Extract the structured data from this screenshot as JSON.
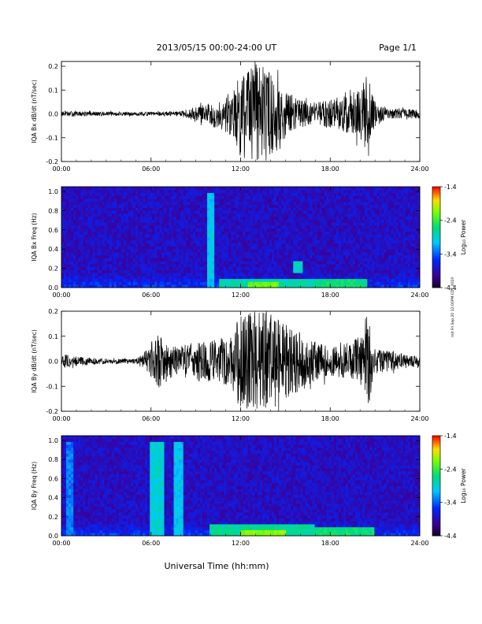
{
  "header": {
    "title": "2013/05/15  00:00-24:00 UT",
    "page": "Page 1/1"
  },
  "footer": {
    "xlabel": "Universal Time (hh:mm)"
  },
  "side_note": "mit Fri Sep 20 12:00PM CDT 2019",
  "colors": {
    "trace": "#000000",
    "background": "#ffffff"
  },
  "chart_data": [
    {
      "type": "line",
      "ylabel": "IQA Bx dB/dt (nT/sec)",
      "x_ticks": [
        "00:00",
        "06:00",
        "12:00",
        "18:00",
        "24:00"
      ],
      "xlim": [
        0,
        24
      ],
      "ylim": [
        -0.2,
        0.22
      ],
      "y_ticks": [
        "-0.2",
        "-0.1",
        "0.0",
        "0.1",
        "0.2"
      ],
      "envelope": {
        "x_hours": [
          0,
          2,
          4,
          6,
          8,
          9,
          10,
          11,
          11.5,
          12,
          12.5,
          13,
          13.5,
          14,
          14.5,
          15,
          16,
          17,
          18,
          19,
          20,
          20.5,
          21,
          22,
          23,
          24
        ],
        "amplitude": [
          0.01,
          0.01,
          0.008,
          0.008,
          0.012,
          0.03,
          0.05,
          0.08,
          0.1,
          0.18,
          0.2,
          0.2,
          0.21,
          0.18,
          0.15,
          0.1,
          0.06,
          0.05,
          0.06,
          0.08,
          0.1,
          0.18,
          0.04,
          0.02,
          0.02,
          0.02
        ]
      }
    },
    {
      "type": "heatmap",
      "ylabel": "IQA Bx Freq (Hz)",
      "x_ticks": [
        "00:00",
        "06:00",
        "12:00",
        "18:00",
        "24:00"
      ],
      "xlim": [
        0,
        24
      ],
      "ylim": [
        0,
        1.05
      ],
      "y_ticks": [
        "0.0",
        "0.2",
        "0.4",
        "0.6",
        "0.8",
        "1.0"
      ],
      "colorbar": {
        "label": "Log₁₀ Power",
        "ticks": [
          "-1.4",
          "-2.4",
          "-3.4",
          "-4.4"
        ],
        "range": [
          -4.4,
          -1.4
        ]
      },
      "features": [
        {
          "time_hours": [
            9.7,
            10.2
          ],
          "freq_hz": [
            0,
            1.0
          ],
          "log_power": -3.0
        },
        {
          "time_hours": [
            10.5,
            17
          ],
          "freq_hz": [
            0,
            0.08
          ],
          "log_power": -2.8
        },
        {
          "time_hours": [
            12.5,
            14.5
          ],
          "freq_hz": [
            0,
            0.06
          ],
          "log_power": -2.2
        },
        {
          "time_hours": [
            15.5,
            16.2
          ],
          "freq_hz": [
            0.15,
            0.28
          ],
          "log_power": -2.9
        },
        {
          "time_hours": [
            17,
            20.5
          ],
          "freq_hz": [
            0,
            0.09
          ],
          "log_power": -2.6
        }
      ]
    },
    {
      "type": "line",
      "ylabel": "IQA By dB/dt (nT/sec)",
      "x_ticks": [
        "00:00",
        "06:00",
        "12:00",
        "18:00",
        "24:00"
      ],
      "xlim": [
        0,
        24
      ],
      "ylim": [
        -0.2,
        0.2
      ],
      "y_ticks": [
        "-0.2",
        "-0.1",
        "0.0",
        "0.1",
        "0.2"
      ],
      "envelope": {
        "x_hours": [
          0,
          1,
          2,
          3,
          4,
          5,
          6,
          6.5,
          7,
          8,
          9,
          10,
          11,
          11.5,
          12,
          13,
          14,
          15,
          16,
          17,
          18,
          19,
          20,
          20.5,
          21,
          22,
          23,
          24
        ],
        "amplitude": [
          0.03,
          0.02,
          0.015,
          0.01,
          0.01,
          0.01,
          0.06,
          0.11,
          0.07,
          0.06,
          0.08,
          0.08,
          0.1,
          0.12,
          0.2,
          0.2,
          0.2,
          0.15,
          0.12,
          0.08,
          0.06,
          0.07,
          0.1,
          0.2,
          0.05,
          0.04,
          0.03,
          0.02
        ]
      }
    },
    {
      "type": "heatmap",
      "ylabel": "IQA By Freq (Hz)",
      "x_ticks": [
        "00:00",
        "06:00",
        "12:00",
        "18:00",
        "24:00"
      ],
      "xlim": [
        0,
        24
      ],
      "ylim": [
        0,
        1.05
      ],
      "y_ticks": [
        "0.0",
        "0.2",
        "0.4",
        "0.6",
        "0.8",
        "1.0"
      ],
      "colorbar": {
        "label": "Log₁₀ Power",
        "ticks": [
          "-1.4",
          "-2.4",
          "-3.4",
          "-4.4"
        ],
        "range": [
          -4.4,
          -1.4
        ]
      },
      "features": [
        {
          "time_hours": [
            6.0,
            6.8
          ],
          "freq_hz": [
            0,
            1.0
          ],
          "log_power": -2.9
        },
        {
          "time_hours": [
            7.6,
            8.1
          ],
          "freq_hz": [
            0,
            1.0
          ],
          "log_power": -3.0
        },
        {
          "time_hours": [
            0.3,
            0.8
          ],
          "freq_hz": [
            0,
            1.0
          ],
          "log_power": -3.3
        },
        {
          "time_hours": [
            10,
            17
          ],
          "freq_hz": [
            0,
            0.12
          ],
          "log_power": -2.7
        },
        {
          "time_hours": [
            12,
            15
          ],
          "freq_hz": [
            0,
            0.06
          ],
          "log_power": -2.1
        },
        {
          "time_hours": [
            17,
            21
          ],
          "freq_hz": [
            0,
            0.1
          ],
          "log_power": -2.6
        }
      ]
    }
  ]
}
